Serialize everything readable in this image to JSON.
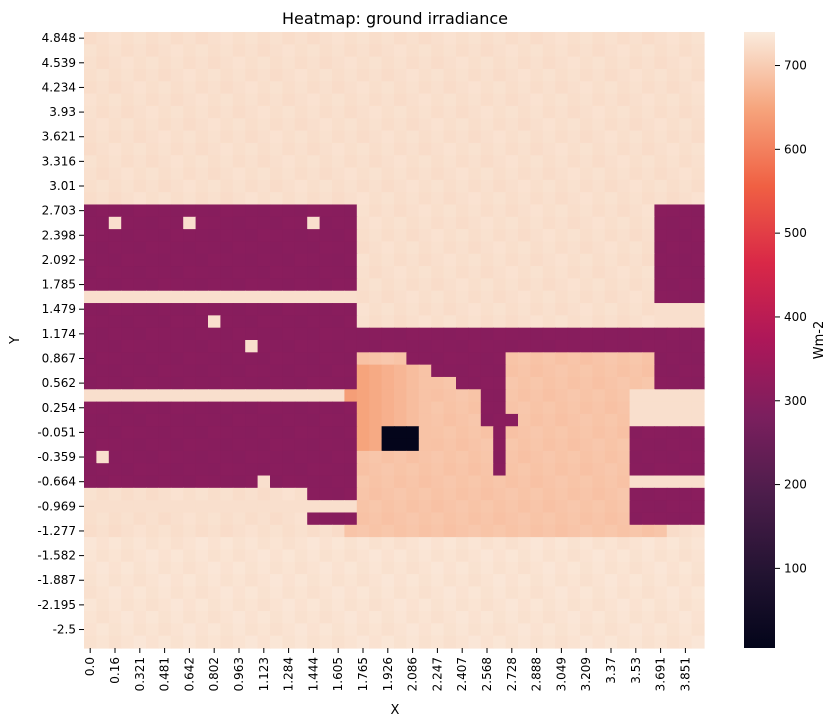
{
  "chart_data": {
    "type": "heatmap",
    "title": "Heatmap: ground irradiance",
    "xlabel": "X",
    "ylabel": "Y",
    "colorbar_label": "Wm-2",
    "colorbar_ticks": [
      100,
      200,
      300,
      400,
      500,
      600,
      700
    ],
    "value_range": [
      5,
      740
    ],
    "x_tick_labels": [
      "0.0",
      "0.16",
      "0.321",
      "0.481",
      "0.642",
      "0.802",
      "0.963",
      "1.123",
      "1.284",
      "1.444",
      "1.605",
      "1.765",
      "1.926",
      "2.086",
      "2.247",
      "2.407",
      "2.568",
      "2.728",
      "2.888",
      "3.049",
      "3.209",
      "3.37",
      "3.53",
      "3.691",
      "3.851"
    ],
    "y_tick_labels": [
      "4.848",
      "4.539",
      "4.234",
      "3.93",
      "3.621",
      "3.316",
      "3.01",
      "2.703",
      "2.398",
      "2.092",
      "1.785",
      "1.479",
      "1.174",
      "0.867",
      "0.562",
      "0.254",
      "-0.051",
      "-0.359",
      "-0.664",
      "-0.969",
      "-1.277",
      "-1.582",
      "-1.887",
      "-2.195",
      "-2.5"
    ],
    "grid": {
      "columns": 50,
      "rows": 50,
      "background_value": 725,
      "shadow_value": 305,
      "shadow_blocks": [
        [
          0,
          22,
          14,
          37
        ],
        [
          18,
          22,
          37,
          40
        ],
        [
          46,
          50,
          14,
          40
        ],
        [
          44,
          50,
          32,
          40
        ],
        [
          0,
          50,
          24,
          26
        ],
        [
          30,
          34,
          26,
          29
        ],
        [
          32,
          33,
          29,
          32
        ],
        [
          33,
          34,
          29,
          36
        ],
        [
          34,
          35,
          31,
          32
        ],
        [
          44,
          46,
          32,
          34
        ],
        [
          26,
          32,
          26,
          27
        ],
        [
          28,
          31,
          27,
          28
        ]
      ],
      "light_gaps": [
        [
          0,
          22,
          21,
          22
        ],
        [
          0,
          22,
          29,
          30
        ],
        [
          0,
          22,
          38,
          39
        ],
        [
          46,
          50,
          22,
          24
        ],
        [
          44,
          50,
          29,
          32
        ],
        [
          44,
          50,
          36,
          37
        ],
        [
          2,
          3,
          15,
          16
        ],
        [
          8,
          9,
          15,
          16
        ],
        [
          18,
          19,
          15,
          16
        ],
        [
          1,
          2,
          34,
          35
        ],
        [
          13,
          14,
          25,
          26
        ],
        [
          10,
          11,
          23,
          24
        ],
        [
          4,
          5,
          38,
          39
        ],
        [
          14,
          15,
          36,
          37
        ]
      ],
      "dark_spot": [
        24,
        27,
        32,
        34
      ],
      "dark_spot_value": 8
    }
  }
}
